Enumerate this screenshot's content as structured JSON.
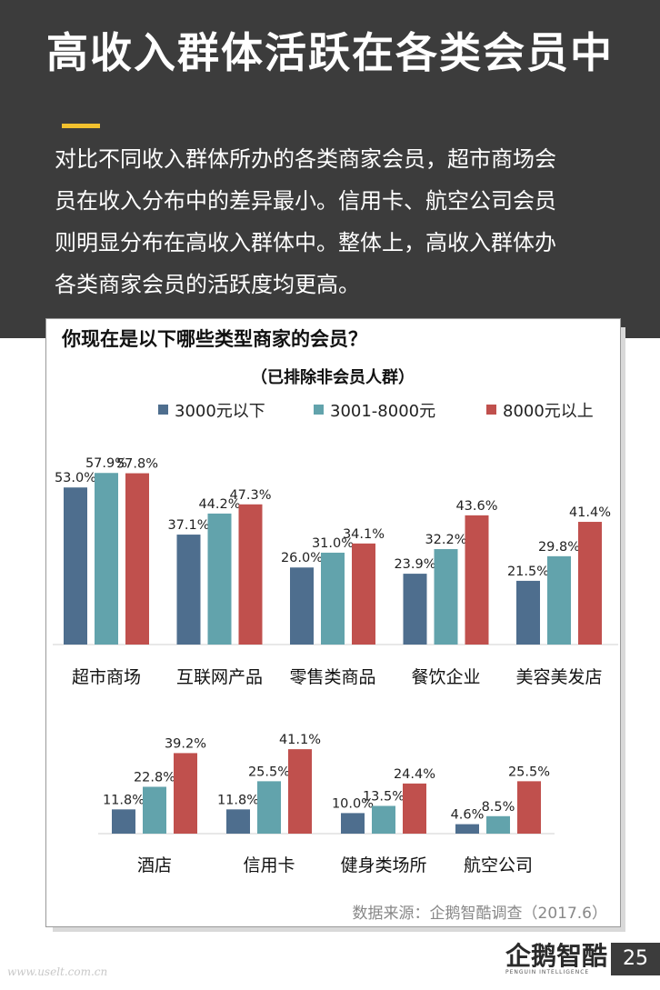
{
  "title": "高收入群体活跃在各类会员中",
  "description": [
    "对比不同收入群体所办的各类商家会员，超市商场会",
    "员在收入分布中的差异最小。信用卡、航空公司会员",
    "则明显分布在高收入群体中。整体上，高收入群体办",
    "各类商家会员的活跃度均更高。"
  ],
  "colors": {
    "dark_bg": "#3c3c3c",
    "accent": "#f2c12e",
    "s1": "#4e6e8e",
    "s2": "#62a3ac",
    "s3": "#c0504d"
  },
  "chart_data": {
    "type": "bar",
    "title": "你现在是以下哪些类型商家的会员？",
    "subtitle": "（已排除非会员人群）",
    "legend_placement": "top",
    "series_names": [
      "3000元以下",
      "3001-8000元",
      "8000元以上"
    ],
    "groups": [
      {
        "categories": [
          "超市商场",
          "互联网产品",
          "零售类商品",
          "餐饮企业",
          "美容美发店"
        ],
        "series": [
          {
            "name": "3000元以下",
            "values": [
              53.0,
              37.1,
              26.0,
              23.9,
              21.5
            ],
            "labels": [
              "53.0%",
              "37.1%",
              "26.0%",
              "23.9%",
              "21.5%"
            ]
          },
          {
            "name": "3001-8000元",
            "values": [
              57.9,
              44.2,
              31.0,
              32.2,
              29.8
            ],
            "labels": [
              "57.9%",
              "44.2%",
              "31.0%",
              "32.2%",
              "29.8%"
            ]
          },
          {
            "name": "8000元以上",
            "values": [
              57.8,
              47.3,
              34.1,
              43.6,
              41.4
            ],
            "labels": [
              "57.8%",
              "47.3%",
              "34.1%",
              "43.6%",
              "41.4%"
            ]
          }
        ]
      },
      {
        "categories": [
          "酒店",
          "信用卡",
          "健身类场所",
          "航空公司"
        ],
        "series": [
          {
            "name": "3000元以下",
            "values": [
              11.8,
              11.8,
              10.0,
              4.6
            ],
            "labels": [
              "11.8%",
              "11.8%",
              "10.0%",
              "4.6%"
            ]
          },
          {
            "name": "3001-8000元",
            "values": [
              22.8,
              25.5,
              13.5,
              8.5
            ],
            "labels": [
              "22.8%",
              "25.5%",
              "13.5%",
              "8.5%"
            ]
          },
          {
            "name": "8000元以上",
            "values": [
              39.2,
              41.1,
              24.4,
              25.5
            ],
            "labels": [
              "39.2%",
              "41.1%",
              "24.4%",
              "25.5%"
            ]
          }
        ]
      }
    ]
  },
  "source": "数据来源：企鹅智酷调查（2017.6）",
  "logo": {
    "name": "企鹅智酷",
    "sub": "PENGUIN INTELLIGENCE",
    "icon": "penguin-logo-icon"
  },
  "page_number": "25",
  "watermark": "www.uselt.com.cn"
}
